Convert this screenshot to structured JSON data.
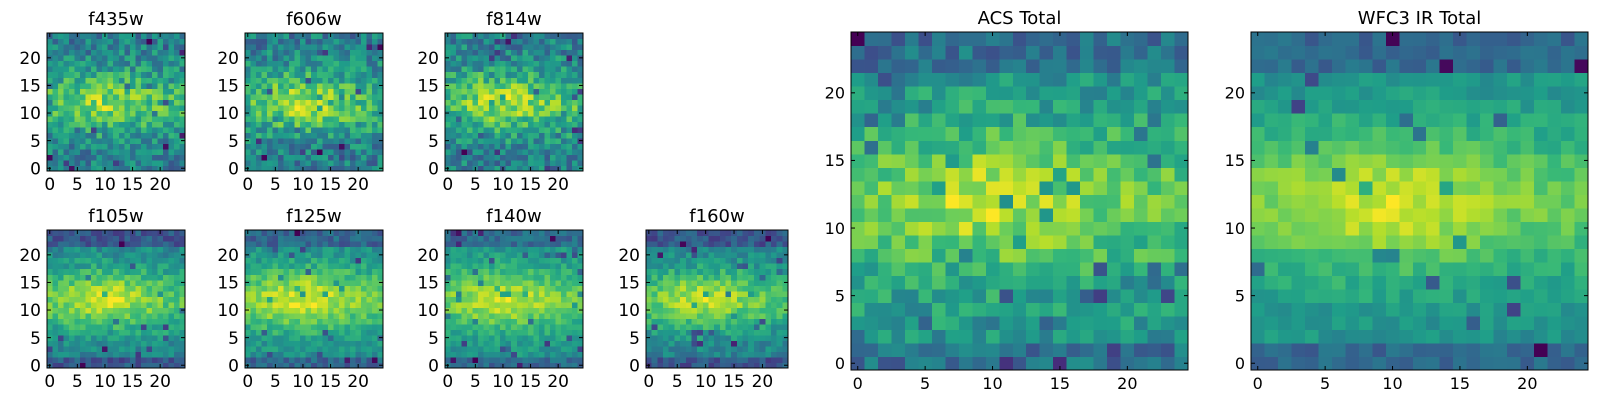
{
  "colormap": "viridis",
  "colors": {
    "viridis_stops": [
      "#440154",
      "#482878",
      "#3e4989",
      "#31688e",
      "#26828e",
      "#1f9e89",
      "#35b779",
      "#6ece58",
      "#b5de2b",
      "#fde725"
    ]
  },
  "chart_data": [
    {
      "type": "heatmap",
      "title": "f435w",
      "grid_size": 25,
      "xticks": [
        0,
        5,
        10,
        15,
        20
      ],
      "yticks": [
        0,
        5,
        10,
        15,
        20
      ],
      "xlim": [
        0,
        24
      ],
      "ylim": [
        0,
        24
      ]
    },
    {
      "type": "heatmap",
      "title": "f606w",
      "grid_size": 25,
      "xticks": [
        0,
        5,
        10,
        15,
        20
      ],
      "yticks": [
        0,
        5,
        10,
        15,
        20
      ],
      "xlim": [
        0,
        24
      ],
      "ylim": [
        0,
        24
      ]
    },
    {
      "type": "heatmap",
      "title": "f814w",
      "grid_size": 25,
      "xticks": [
        0,
        5,
        10,
        15,
        20
      ],
      "yticks": [
        0,
        5,
        10,
        15,
        20
      ],
      "xlim": [
        0,
        24
      ],
      "ylim": [
        0,
        24
      ]
    },
    {
      "type": "heatmap",
      "title": "f105w",
      "grid_size": 25,
      "xticks": [
        0,
        5,
        10,
        15,
        20
      ],
      "yticks": [
        0,
        5,
        10,
        15,
        20
      ],
      "xlim": [
        0,
        24
      ],
      "ylim": [
        0,
        24
      ]
    },
    {
      "type": "heatmap",
      "title": "f125w",
      "grid_size": 25,
      "xticks": [
        0,
        5,
        10,
        15,
        20
      ],
      "yticks": [
        0,
        5,
        10,
        15,
        20
      ],
      "xlim": [
        0,
        24
      ],
      "ylim": [
        0,
        24
      ]
    },
    {
      "type": "heatmap",
      "title": "f140w",
      "grid_size": 25,
      "xticks": [
        0,
        5,
        10,
        15,
        20
      ],
      "yticks": [
        0,
        5,
        10,
        15,
        20
      ],
      "xlim": [
        0,
        24
      ],
      "ylim": [
        0,
        24
      ]
    },
    {
      "type": "heatmap",
      "title": "f160w",
      "grid_size": 25,
      "xticks": [
        0,
        5,
        10,
        15,
        20
      ],
      "yticks": [
        0,
        5,
        10,
        15,
        20
      ],
      "xlim": [
        0,
        24
      ],
      "ylim": [
        0,
        24
      ]
    },
    {
      "type": "heatmap",
      "title": "ACS Total",
      "grid_size": 25,
      "xticks": [
        0,
        5,
        10,
        15,
        20
      ],
      "yticks": [
        0,
        5,
        10,
        15,
        20
      ],
      "xlim": [
        0,
        24
      ],
      "ylim": [
        0,
        24
      ]
    },
    {
      "type": "heatmap",
      "title": "WFC3 IR Total",
      "grid_size": 25,
      "xticks": [
        0,
        5,
        10,
        15,
        20
      ],
      "yticks": [
        0,
        5,
        10,
        15,
        20
      ],
      "xlim": [
        0,
        24
      ],
      "ylim": [
        0,
        24
      ]
    }
  ]
}
